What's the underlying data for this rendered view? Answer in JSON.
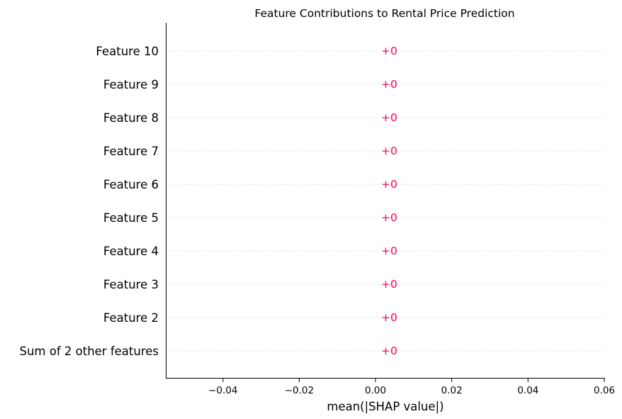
{
  "chart_data": {
    "type": "bar",
    "title": "Feature Contributions to Rental Price Prediction",
    "xlabel": "mean(|SHAP value|)",
    "ylabel": "",
    "xlim": [
      -0.055,
      0.06
    ],
    "xticks": [
      -0.04,
      -0.02,
      0.0,
      0.02,
      0.04,
      0.06
    ],
    "xtick_labels": [
      "−0.04",
      "−0.02",
      "0.00",
      "0.02",
      "0.04",
      "0.06"
    ],
    "orientation": "horizontal",
    "grid": "dotted horizontal guide lines per feature",
    "categories": [
      "Feature 10",
      "Feature 9",
      "Feature 8",
      "Feature 7",
      "Feature 6",
      "Feature 5",
      "Feature 4",
      "Feature 3",
      "Feature 2",
      "Sum of 2 other features"
    ],
    "values": [
      0,
      0,
      0,
      0,
      0,
      0,
      0,
      0,
      0,
      0
    ],
    "value_labels": [
      "+0",
      "+0",
      "+0",
      "+0",
      "+0",
      "+0",
      "+0",
      "+0",
      "+0",
      "+0"
    ],
    "colors": {
      "bar": "#ff0051",
      "label": "#ff0051",
      "guide": "#cccccc",
      "axis": "#000000"
    }
  }
}
